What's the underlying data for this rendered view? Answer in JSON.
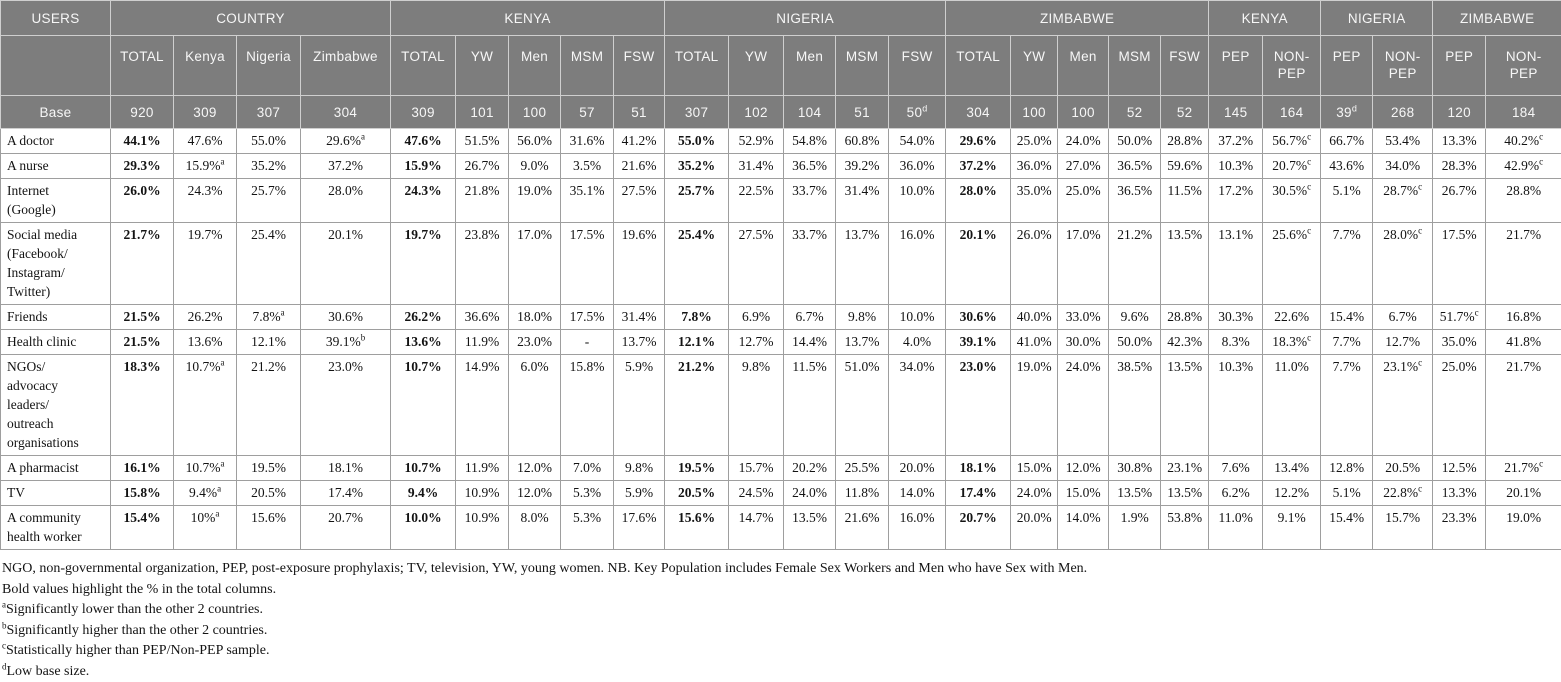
{
  "colors": {
    "header_bg": "#7d7d7d",
    "header_text": "#f7f7f7",
    "body_text": "#131313",
    "grid_line": "#9e9e9e"
  },
  "table": {
    "header_groups": [
      {
        "label": "USERS",
        "colspan": 1,
        "align": "left"
      },
      {
        "label": "COUNTRY",
        "colspan": 4
      },
      {
        "label": "KENYA",
        "colspan": 5
      },
      {
        "label": "NIGERIA",
        "colspan": 5
      },
      {
        "label": "ZIMBABWE",
        "colspan": 5
      },
      {
        "label": "KENYA",
        "colspan": 2
      },
      {
        "label": "NIGERIA",
        "colspan": 2
      },
      {
        "label": "ZIMBABWE",
        "colspan": 2
      }
    ],
    "subheaders": [
      "",
      "TOTAL",
      "Kenya",
      "Nigeria",
      "Zimbabwe",
      "TOTAL",
      "YW",
      "Men",
      "MSM",
      "FSW",
      "TOTAL",
      "YW",
      "Men",
      "MSM",
      "FSW",
      "TOTAL",
      "YW",
      "Men",
      "MSM",
      "FSW",
      "PEP",
      "NON-\nPEP",
      "PEP",
      "NON-\nPEP",
      "PEP",
      "NON-\nPEP"
    ],
    "base_row": {
      "label": "Base",
      "values": [
        "920",
        "309",
        "307",
        "304",
        "309",
        "101",
        "100",
        "57",
        "51",
        "307",
        "102",
        "104",
        "51",
        "50^d",
        "304",
        "100",
        "100",
        "52",
        "52",
        "145",
        "164",
        "39^d",
        "268",
        "120",
        "184"
      ]
    },
    "bold_value_columns": [
      0,
      4,
      9,
      14
    ],
    "rows": [
      {
        "label": "A doctor",
        "values": [
          "44.1%",
          "47.6%",
          "55.0%",
          "29.6%^a",
          "47.6%",
          "51.5%",
          "56.0%",
          "31.6%",
          "41.2%",
          "55.0%",
          "52.9%",
          "54.8%",
          "60.8%",
          "54.0%",
          "29.6%",
          "25.0%",
          "24.0%",
          "50.0%",
          "28.8%",
          "37.2%",
          "56.7%^c",
          "66.7%",
          "53.4%",
          "13.3%",
          "40.2%^c"
        ]
      },
      {
        "label": "A nurse",
        "values": [
          "29.3%",
          "15.9%^a",
          "35.2%",
          "37.2%",
          "15.9%",
          "26.7%",
          "9.0%",
          "3.5%",
          "21.6%",
          "35.2%",
          "31.4%",
          "36.5%",
          "39.2%",
          "36.0%",
          "37.2%",
          "36.0%",
          "27.0%",
          "36.5%",
          "59.6%",
          "10.3%",
          "20.7%^c",
          "43.6%",
          "34.0%",
          "28.3%",
          "42.9%^c"
        ]
      },
      {
        "label": "Internet\n(Google)",
        "values": [
          "26.0%",
          "24.3%",
          "25.7%",
          "28.0%",
          "24.3%",
          "21.8%",
          "19.0%",
          "35.1%",
          "27.5%",
          "25.7%",
          "22.5%",
          "33.7%",
          "31.4%",
          "10.0%",
          "28.0%",
          "35.0%",
          "25.0%",
          "36.5%",
          "11.5%",
          "17.2%",
          "30.5%^c",
          "5.1%",
          "28.7%^c",
          "26.7%",
          "28.8%"
        ]
      },
      {
        "label": "Social media\n(Facebook/\nInstagram/\nTwitter)",
        "values": [
          "21.7%",
          "19.7%",
          "25.4%",
          "20.1%",
          "19.7%",
          "23.8%",
          "17.0%",
          "17.5%",
          "19.6%",
          "25.4%",
          "27.5%",
          "33.7%",
          "13.7%",
          "16.0%",
          "20.1%",
          "26.0%",
          "17.0%",
          "21.2%",
          "13.5%",
          "13.1%",
          "25.6%^c",
          "7.7%",
          "28.0%^c",
          "17.5%",
          "21.7%"
        ]
      },
      {
        "label": "Friends",
        "values": [
          "21.5%",
          "26.2%",
          "7.8%^a",
          "30.6%",
          "26.2%",
          "36.6%",
          "18.0%",
          "17.5%",
          "31.4%",
          "7.8%",
          "6.9%",
          "6.7%",
          "9.8%",
          "10.0%",
          "30.6%",
          "40.0%",
          "33.0%",
          "9.6%",
          "28.8%",
          "30.3%",
          "22.6%",
          "15.4%",
          "6.7%",
          "51.7%^c",
          "16.8%"
        ]
      },
      {
        "label": "Health clinic",
        "values": [
          "21.5%",
          "13.6%",
          "12.1%",
          "39.1%^b",
          "13.6%",
          "11.9%",
          "23.0%",
          "-",
          "13.7%",
          "12.1%",
          "12.7%",
          "14.4%",
          "13.7%",
          "4.0%",
          "39.1%",
          "41.0%",
          "30.0%",
          "50.0%",
          "42.3%",
          "8.3%",
          "18.3%^c",
          "7.7%",
          "12.7%",
          "35.0%",
          "41.8%"
        ]
      },
      {
        "label": "NGOs/\nadvocacy\nleaders/\noutreach\norganisations",
        "values": [
          "18.3%",
          "10.7%^a",
          "21.2%",
          "23.0%",
          "10.7%",
          "14.9%",
          "6.0%",
          "15.8%",
          "5.9%",
          "21.2%",
          "9.8%",
          "11.5%",
          "51.0%",
          "34.0%",
          "23.0%",
          "19.0%",
          "24.0%",
          "38.5%",
          "13.5%",
          "10.3%",
          "11.0%",
          "7.7%",
          "23.1%^c",
          "25.0%",
          "21.7%"
        ]
      },
      {
        "label": "A pharmacist",
        "values": [
          "16.1%",
          "10.7%^a",
          "19.5%",
          "18.1%",
          "10.7%",
          "11.9%",
          "12.0%",
          "7.0%",
          "9.8%",
          "19.5%",
          "15.7%",
          "20.2%",
          "25.5%",
          "20.0%",
          "18.1%",
          "15.0%",
          "12.0%",
          "30.8%",
          "23.1%",
          "7.6%",
          "13.4%",
          "12.8%",
          "20.5%",
          "12.5%",
          "21.7%^c"
        ]
      },
      {
        "label": "TV",
        "values": [
          "15.8%",
          "9.4%^a",
          "20.5%",
          "17.4%",
          "9.4%",
          "10.9%",
          "12.0%",
          "5.3%",
          "5.9%",
          "20.5%",
          "24.5%",
          "24.0%",
          "11.8%",
          "14.0%",
          "17.4%",
          "24.0%",
          "15.0%",
          "13.5%",
          "13.5%",
          "6.2%",
          "12.2%",
          "5.1%",
          "22.8%^c",
          "13.3%",
          "20.1%"
        ]
      },
      {
        "label": "A community\nhealth worker",
        "values": [
          "15.4%",
          "10%^a",
          "15.6%",
          "20.7%",
          "10.0%",
          "10.9%",
          "8.0%",
          "5.3%",
          "17.6%",
          "15.6%",
          "14.7%",
          "13.5%",
          "21.6%",
          "16.0%",
          "20.7%",
          "20.0%",
          "14.0%",
          "1.9%",
          "53.8%",
          "11.0%",
          "9.1%",
          "15.4%",
          "15.7%",
          "23.3%",
          "19.0%"
        ]
      }
    ]
  },
  "footnotes": [
    {
      "sup": "",
      "text": "NGO, non-governmental organization, PEP, post-exposure prophylaxis; TV, television, YW, young women. NB. Key Population includes Female Sex Workers and Men who have Sex with Men."
    },
    {
      "sup": "",
      "text": "Bold values highlight the % in the total columns."
    },
    {
      "sup": "a",
      "text": "Significantly lower than the other 2 countries."
    },
    {
      "sup": "b",
      "text": "Significantly higher than the other 2 countries."
    },
    {
      "sup": "c",
      "text": "Statistically higher than PEP/Non-PEP sample."
    },
    {
      "sup": "d",
      "text": "Low base size."
    }
  ]
}
